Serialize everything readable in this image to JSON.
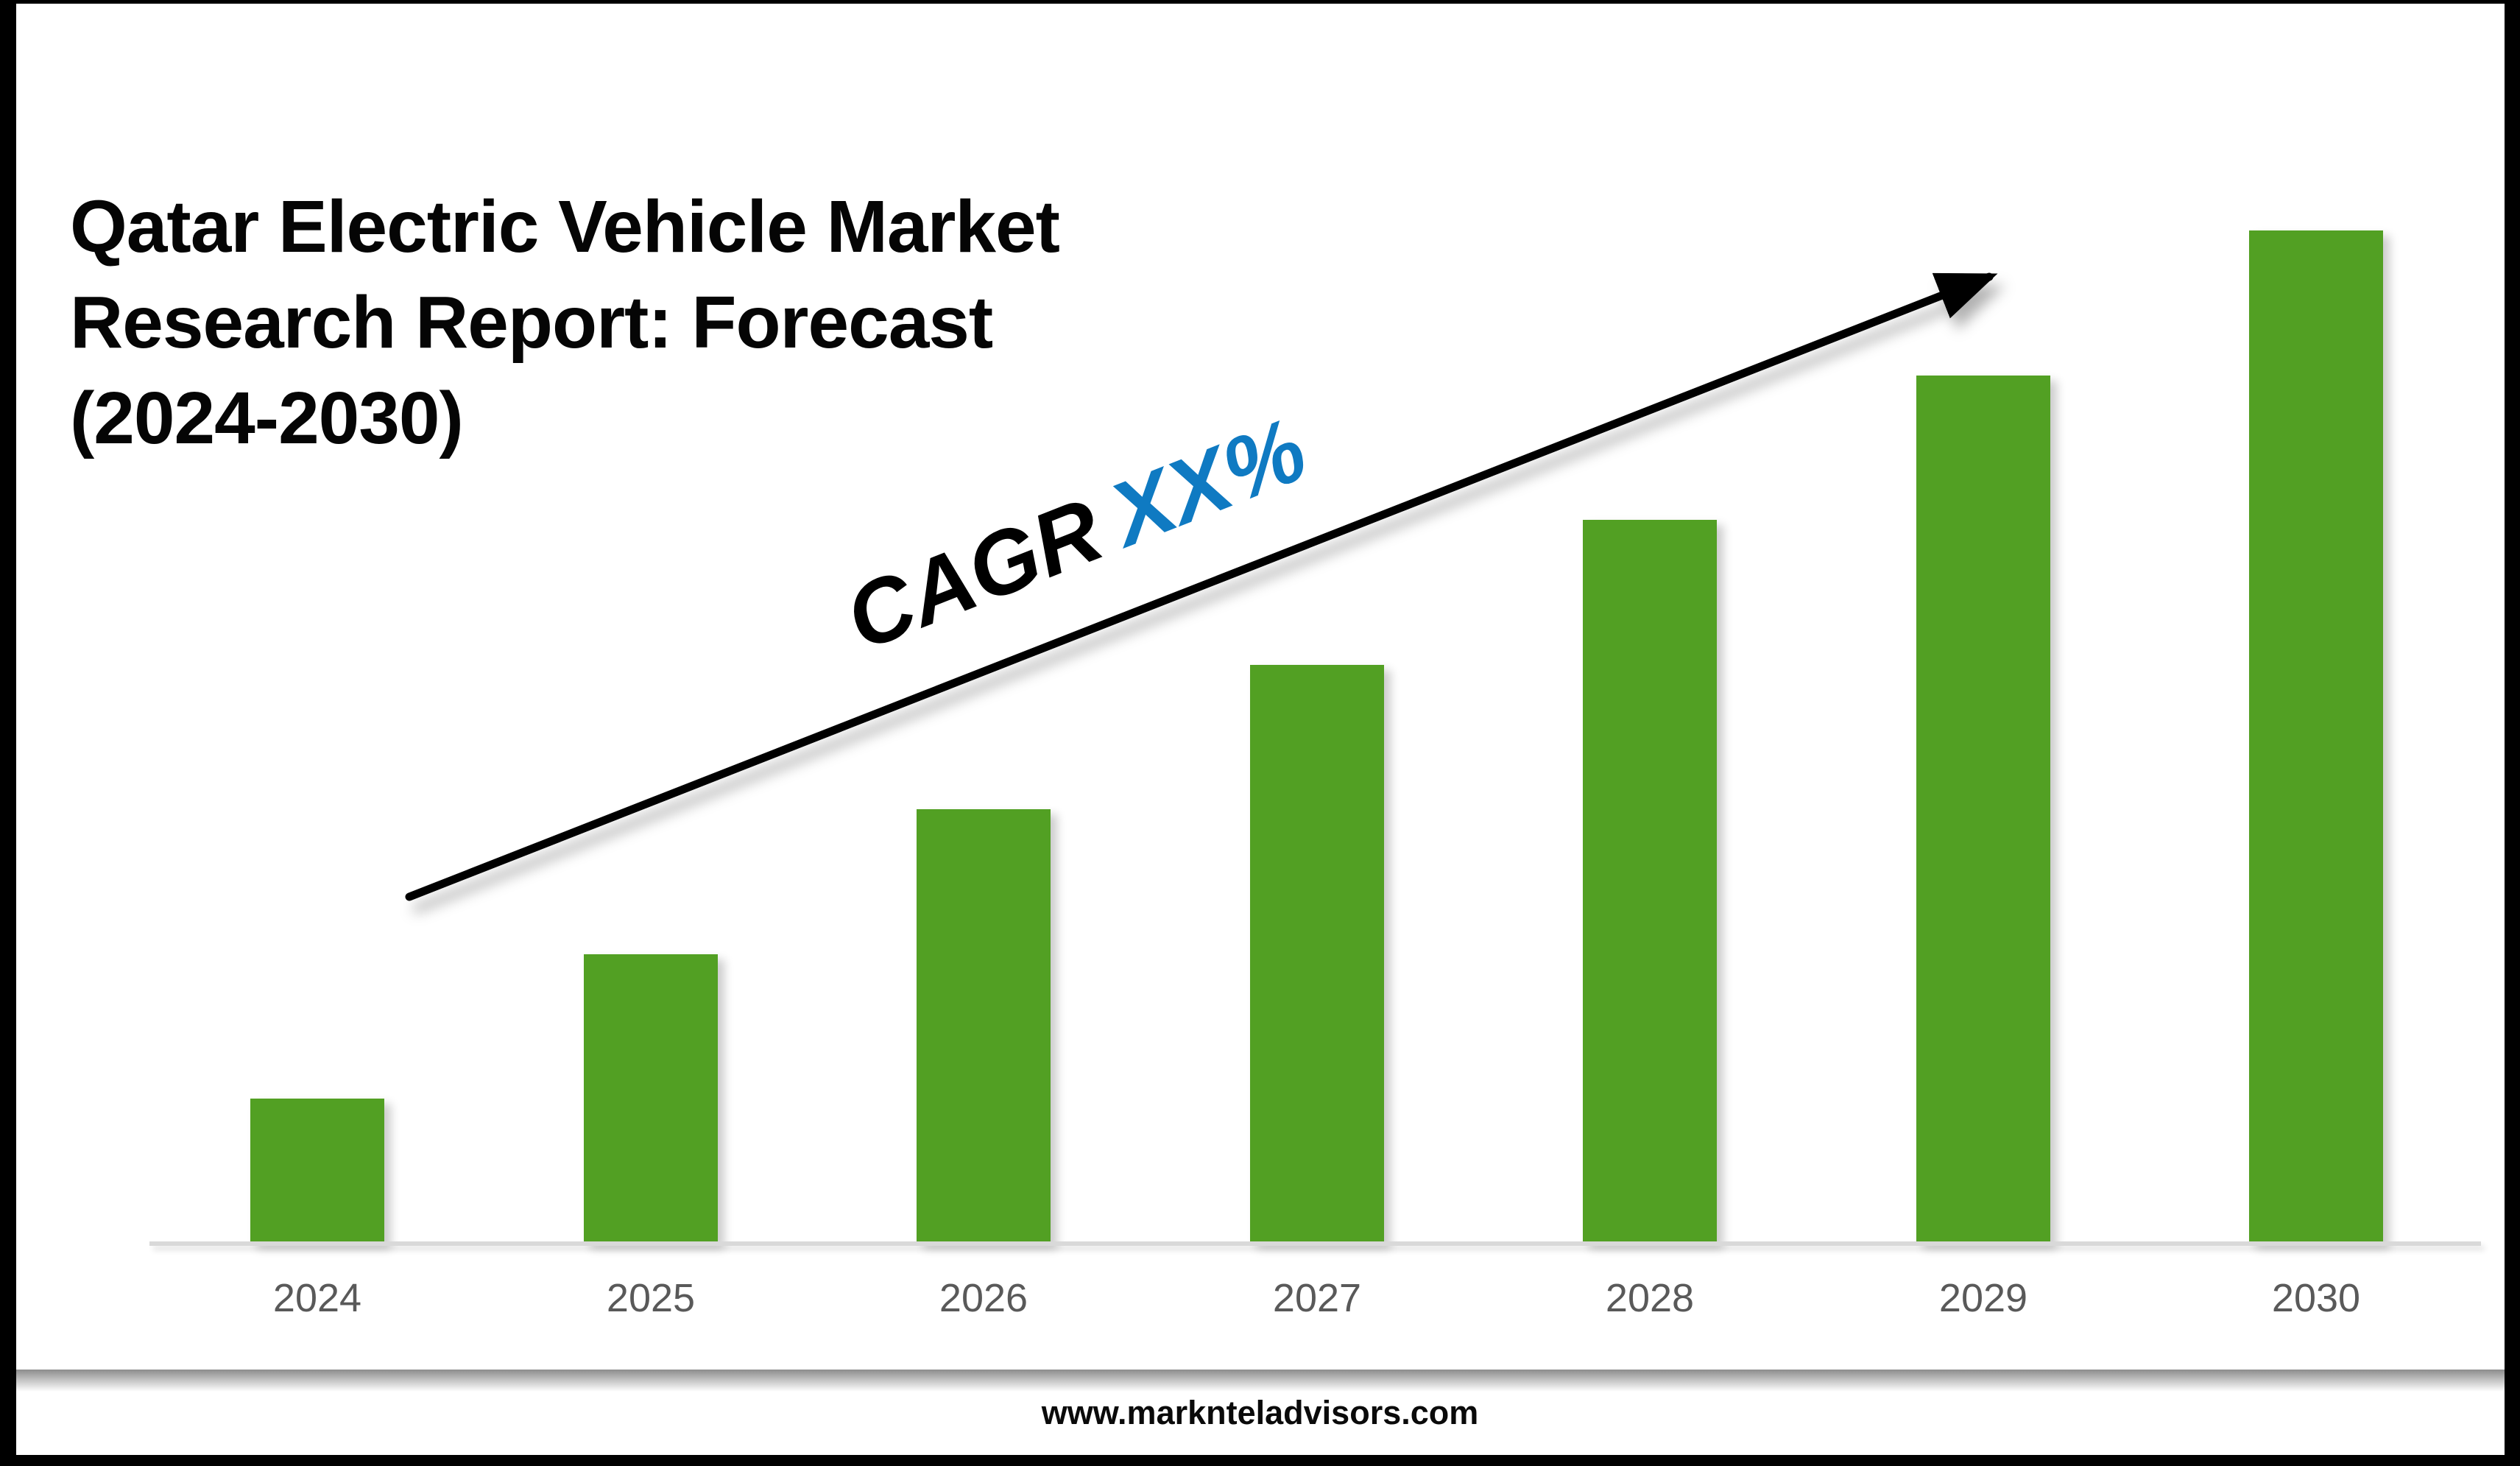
{
  "title": {
    "text": "Qatar Electric Vehicle Market Research Report: Forecast (2024-2030)",
    "lines": [
      "Qatar Electric Vehicle Market",
      "Research Report: Forecast",
      "(2024-2030)"
    ]
  },
  "cagr": {
    "label": "CAGR",
    "value": "XX%",
    "label_color": "#000000",
    "value_color": "#0f7ac2"
  },
  "footer": {
    "url": "www.marknteladvisors.com"
  },
  "colors": {
    "bar": "#52a023",
    "axis_line": "#d9d9d9",
    "tick_label": "#595959",
    "arrow": "#000000",
    "title_text": "#050505"
  },
  "chart_data": {
    "type": "bar",
    "title": "Qatar Electric Vehicle Market Research Report: Forecast (2024-2030)",
    "categories": [
      "2024",
      "2025",
      "2026",
      "2027",
      "2028",
      "2029",
      "2030"
    ],
    "values": [
      1,
      2,
      3,
      4,
      5,
      6,
      7
    ],
    "value_note": "no y-axis or data labels shown; bar heights rise linearly, values are relative units",
    "xlabel": "",
    "ylabel": "",
    "ylim": [
      0,
      7.6
    ],
    "y_axis_visible": false,
    "grid": false,
    "legend": false,
    "annotation": "CAGR XX% with upward trend arrow"
  }
}
